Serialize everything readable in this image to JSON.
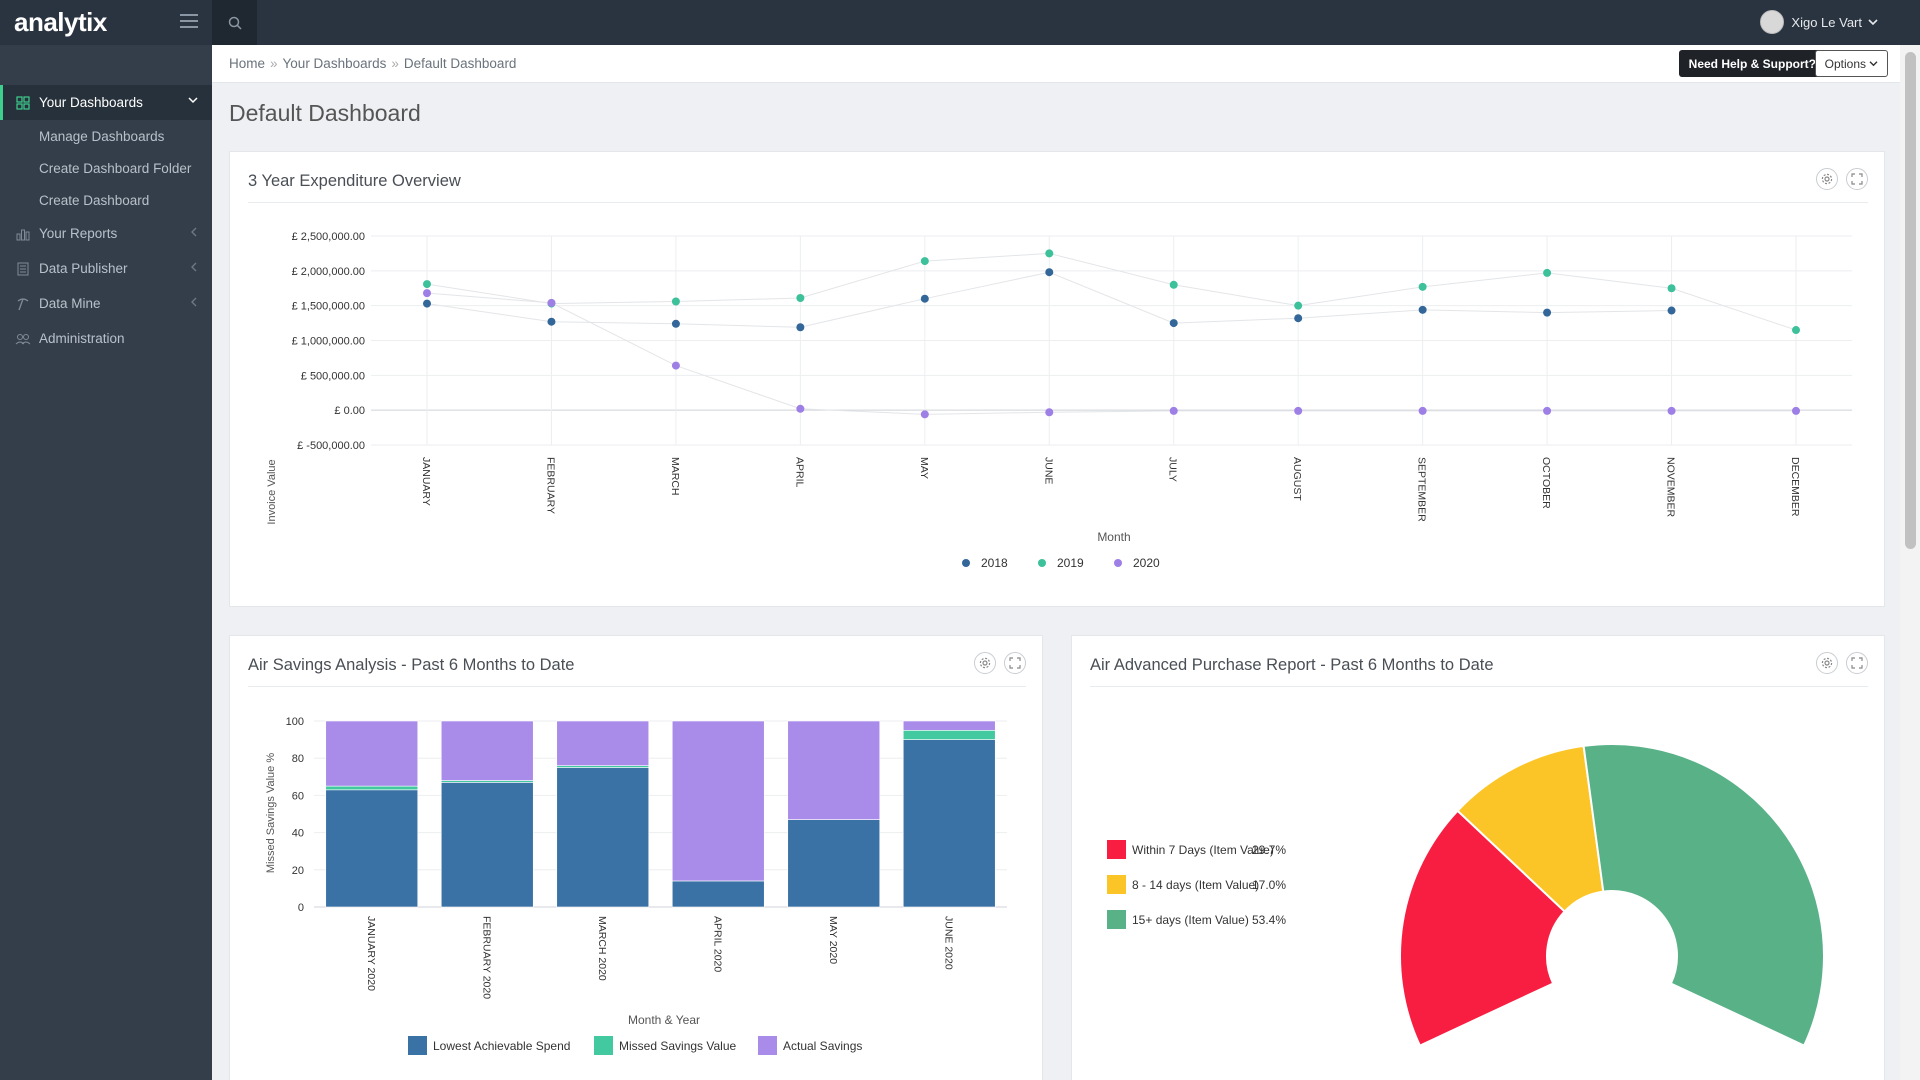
{
  "app": {
    "brand": "analytix",
    "user_name": "Xigo Le Vart"
  },
  "sidebar": {
    "items": [
      {
        "label": "Your Dashboards",
        "icon": "grid-icon",
        "active": true
      },
      {
        "label": "Your Reports",
        "icon": "bar-chart-icon"
      },
      {
        "label": "Data Publisher",
        "icon": "book-icon"
      },
      {
        "label": "Data Mine",
        "icon": "pickaxe-icon"
      },
      {
        "label": "Administration",
        "icon": "users-icon"
      }
    ],
    "sub_items": [
      "Manage Dashboards",
      "Create Dashboard Folder",
      "Create Dashboard"
    ]
  },
  "breadcrumb": {
    "items": [
      "Home",
      "Your Dashboards",
      "Default Dashboard"
    ]
  },
  "header": {
    "help_label": "Need Help & Support?",
    "options_label": "Options"
  },
  "page": {
    "title": "Default Dashboard"
  },
  "panels": {
    "expenditure": {
      "title": "3 Year Expenditure Overview"
    },
    "savings": {
      "title": "Air Savings Analysis - Past 6 Months to Date"
    },
    "advanced": {
      "title": "Air Advanced Purchase Report - Past 6 Months to Date"
    }
  },
  "chart_data": [
    {
      "type": "line",
      "xlabel": "Month",
      "ylabel": "Invoice Value",
      "ylim": [
        -500000,
        2500000
      ],
      "yticks": [
        "£ 2,500,000.00",
        "£ 2,000,000.00",
        "£ 1,500,000.00",
        "£ 1,000,000.00",
        "£ 500,000.00",
        "£ 0.00",
        "£ -500,000.00"
      ],
      "ytick_values": [
        2500000,
        2000000,
        1500000,
        1000000,
        500000,
        0,
        -500000
      ],
      "categories": [
        "JANUARY",
        "FEBRUARY",
        "MARCH",
        "APRIL",
        "MAY",
        "JUNE",
        "JULY",
        "AUGUST",
        "SEPTEMBER",
        "OCTOBER",
        "NOVEMBER",
        "DECEMBER"
      ],
      "legend": "bottom-center",
      "grid": true,
      "series": [
        {
          "name": "2018",
          "color": "#336699",
          "values": [
            1530000,
            1270000,
            1240000,
            1190000,
            1600000,
            1980000,
            1250000,
            1320000,
            1440000,
            1400000,
            1430000,
            null
          ]
        },
        {
          "name": "2019",
          "color": "#3cc19a",
          "values": [
            1810000,
            1530000,
            1560000,
            1610000,
            2140000,
            2250000,
            1800000,
            1500000,
            1770000,
            1970000,
            1750000,
            1150000
          ]
        },
        {
          "name": "2020",
          "color": "#9d7fe6",
          "values": [
            1680000,
            1540000,
            640000,
            20000,
            -60000,
            -30000,
            -10000,
            -10000,
            -10000,
            -10000,
            -10000,
            -10000
          ]
        }
      ]
    },
    {
      "type": "bar",
      "stacked": true,
      "xlabel": "Month & Year",
      "ylabel": "Missed Savings Value %",
      "ylim": [
        0,
        100
      ],
      "yticks": [
        0,
        20,
        40,
        60,
        80,
        100
      ],
      "categories": [
        "JANUARY 2020",
        "FEBRUARY 2020",
        "MARCH 2020",
        "APRIL 2020",
        "MAY 2020",
        "JUNE 2020"
      ],
      "legend": "bottom-center",
      "series": [
        {
          "name": "Lowest Achievable Spend",
          "color": "#3b72a6",
          "values": [
            63,
            67,
            75,
            14,
            47,
            90
          ]
        },
        {
          "name": "Missed Savings Value",
          "color": "#43c9a0",
          "values": [
            2,
            1,
            1,
            0,
            0,
            5
          ]
        },
        {
          "name": "Actual Savings",
          "color": "#a98be9",
          "values": [
            35,
            32,
            24,
            86,
            53,
            5
          ]
        }
      ]
    },
    {
      "type": "pie",
      "variant": "semi-donut",
      "legend": "left",
      "slices": [
        {
          "label": "Within 7 Days (Item Value)",
          "value": 29.7,
          "display": "29.7%",
          "color": "#f81e41"
        },
        {
          "label": "8 - 14 days (Item Value)",
          "value": 17.0,
          "display": "17.0%",
          "color": "#fcc527"
        },
        {
          "label": "15+ days (Item Value)",
          "value": 53.4,
          "display": "53.4%",
          "color": "#59b187"
        }
      ]
    }
  ]
}
